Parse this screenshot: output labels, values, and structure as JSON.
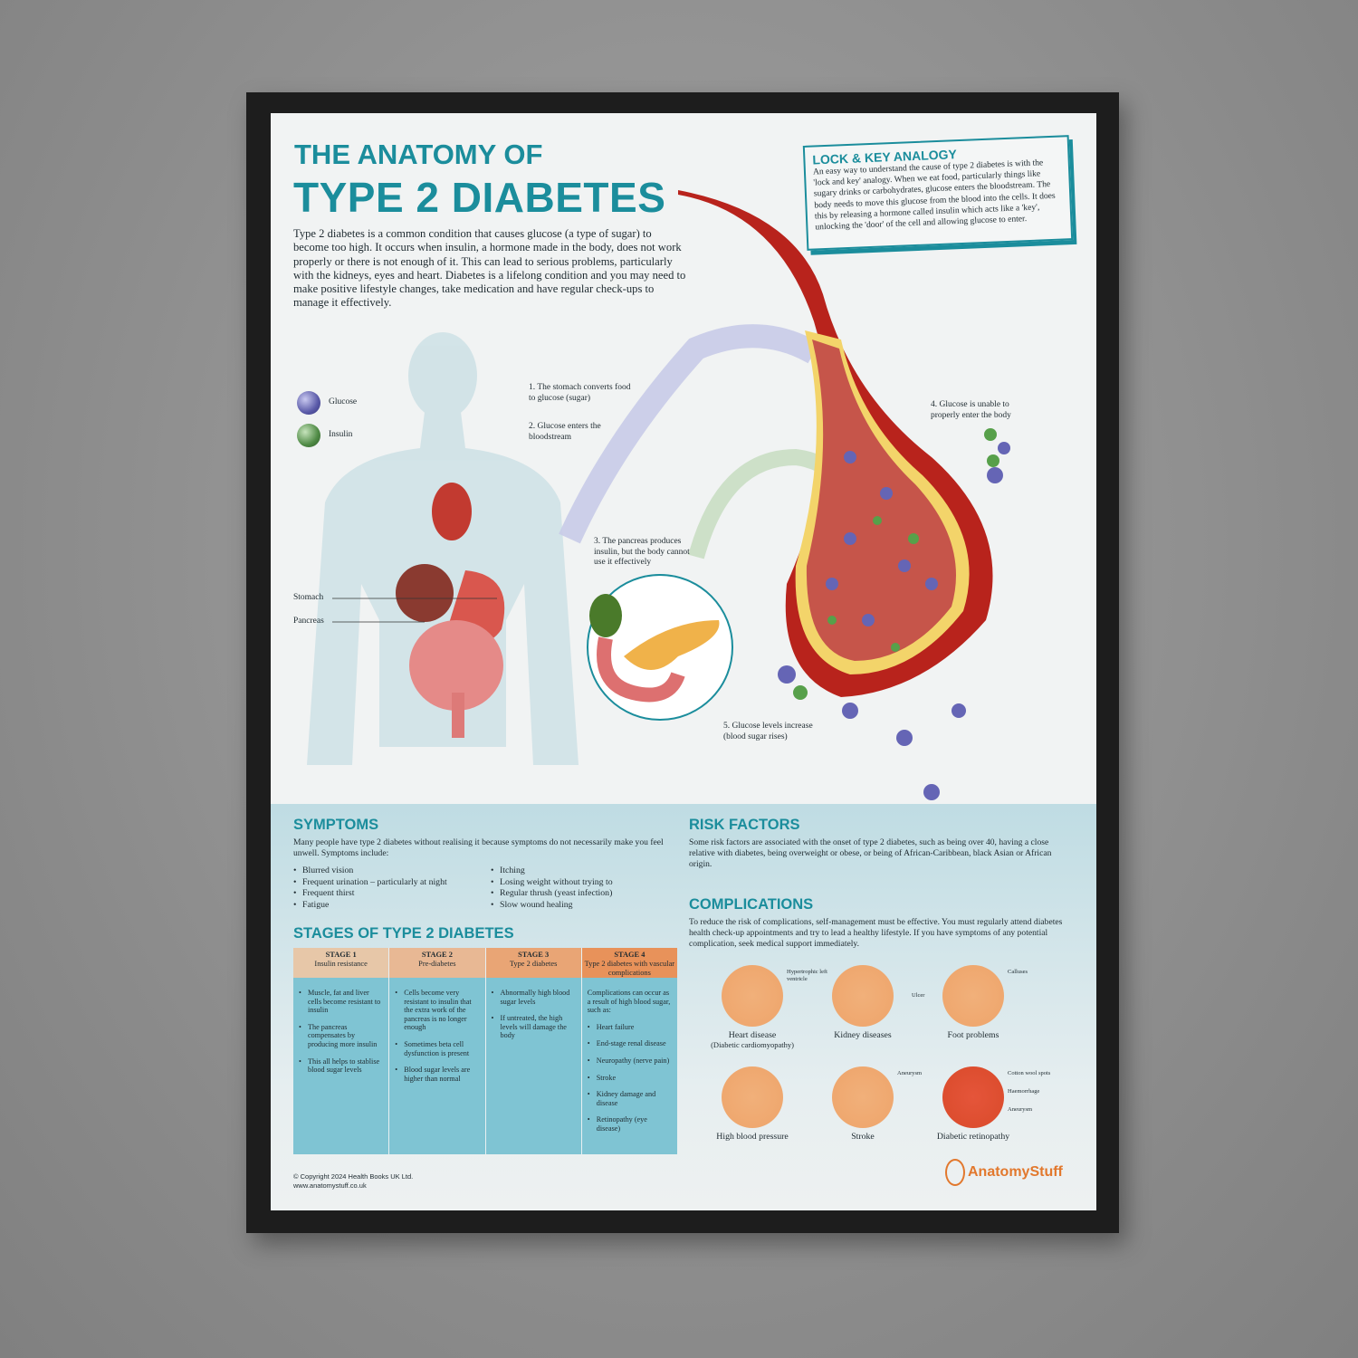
{
  "header": {
    "title_line1": "THE ANATOMY OF",
    "title_line2": "TYPE 2 DIABETES",
    "intro": "Type 2 diabetes is a common condition that causes glucose (a type of sugar) to become too high. It occurs when insulin, a hormone made in the body, does not work properly or there is not enough of it. This can lead to serious problems, particularly with the kidneys, eyes and heart. Diabetes is a lifelong condition and you may need to make positive lifestyle changes, take medication and have regular check-ups to manage it effectively."
  },
  "lock_key": {
    "title": "LOCK & KEY ANALOGY",
    "text": "An easy way to understand the cause of type 2 diabetes is with the 'lock and key' analogy. When we eat food, particularly things like sugary drinks or carbohydrates, glucose enters the bloodstream. The body needs to move this glucose from the blood into the cells. It does this by releasing a hormone called insulin which acts like a 'key', unlocking the 'door' of the cell and allowing glucose to enter."
  },
  "legend": {
    "glucose": "Glucose",
    "insulin": "Insulin",
    "glucose_color": "#5a5aa8",
    "insulin_color": "#4f8a45"
  },
  "diagram": {
    "stomach": "Stomach",
    "pancreas": "Pancreas",
    "step1": "1. The stomach converts food to glucose (sugar)",
    "step2": "2. Glucose enters the bloodstream",
    "step3": "3. The pancreas produces insulin, but the body cannot use it effectively",
    "step4": "4. Glucose is unable to properly enter the body",
    "step5": "5. Glucose levels increase (blood sugar rises)"
  },
  "symptoms": {
    "title": "SYMPTOMS",
    "intro": "Many people have type 2 diabetes without realising it because symptoms do not necessarily make you feel unwell. Symptoms include:",
    "left": [
      "Blurred vision",
      "Frequent urination – particularly at night",
      "Frequent thirst",
      "Fatigue"
    ],
    "right": [
      "Itching",
      "Losing weight without trying to",
      "Regular thrush (yeast infection)",
      "Slow wound healing"
    ]
  },
  "stages": {
    "title": "STAGES OF TYPE 2 DIABETES",
    "columns": [
      {
        "stage": "STAGE 1",
        "name": "Insulin resistance",
        "color": "#e7c7a8",
        "intro": "",
        "items": [
          "Muscle, fat and liver cells become resistant to insulin",
          "The pancreas compensates by producing more insulin",
          "This all helps to stablise blood sugar levels"
        ]
      },
      {
        "stage": "STAGE 2",
        "name": "Pre-diabetes",
        "color": "#e8b894",
        "intro": "",
        "items": [
          "Cells become very resistant to insulin that the extra work of the pancreas is no longer enough",
          "Sometimes beta cell dysfunction is present",
          "Blood sugar levels are higher than normal"
        ]
      },
      {
        "stage": "STAGE 3",
        "name": "Type 2 diabetes",
        "color": "#e9a575",
        "intro": "",
        "items": [
          "Abnormally high blood sugar levels",
          "If untreated, the high levels will damage the body"
        ]
      },
      {
        "stage": "STAGE 4",
        "name": "Type 2 diabetes with vascular complications",
        "color": "#e8925a",
        "intro": "Complications can occur as a result of high blood sugar, such as:",
        "items": [
          "Heart failure",
          "End-stage renal disease",
          "Neuropathy (nerve pain)",
          "Stroke",
          "Kidney damage and disease",
          "Retinopathy (eye disease)"
        ]
      }
    ]
  },
  "risk": {
    "title": "RISK FACTORS",
    "text": "Some risk factors are associated with the onset of type 2 diabetes, such as being over 40, having a close relative with diabetes, being overweight or obese, or being of African-Caribbean, black Asian or African origin."
  },
  "complications": {
    "title": "COMPLICATIONS",
    "text": "To reduce the risk of complications, self-management must be effective. You must regularly attend diabetes health check-up appointments and try to lead a healthy lifestyle. If you have symptoms of any potential complication, seek medical support immediately.",
    "items": [
      {
        "name": "Heart disease",
        "sub": "(Diabetic cardiomyopathy)",
        "notes": [
          "Hypertrophic left ventricle"
        ]
      },
      {
        "name": "Kidney diseases",
        "sub": "",
        "notes": []
      },
      {
        "name": "Foot problems",
        "sub": "",
        "notes": [
          "Calluses",
          "Ulcer"
        ]
      },
      {
        "name": "High blood pressure",
        "sub": "",
        "notes": []
      },
      {
        "name": "Stroke",
        "sub": "",
        "notes": [
          "Aneurysm"
        ]
      },
      {
        "name": "Diabetic retinopathy",
        "sub": "",
        "notes": [
          "Cotton wool spots",
          "Haemorrhage",
          "Aneurysm"
        ]
      }
    ]
  },
  "footer": {
    "copyright": "© Copyright 2024 Health Books UK Ltd.",
    "website": "www.anatomystuff.co.uk",
    "brand": "AnatomyStuff",
    "brand_color": "#e2782d"
  }
}
